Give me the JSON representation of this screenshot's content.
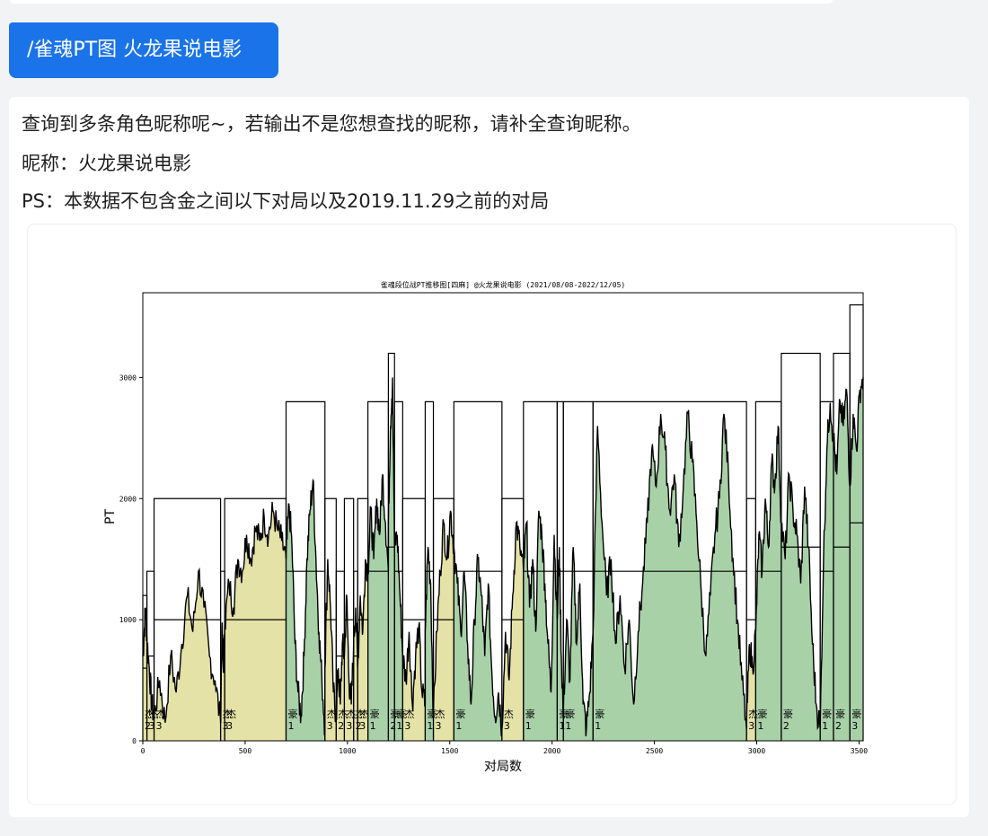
{
  "command_message": {
    "text": "/雀魂PT图 火龙果说电影"
  },
  "reply": {
    "line1": "查询到多条角色昵称呢~，若输出不是您想查找的昵称，请补全查询昵称。",
    "line2": "昵称：火龙果说电影",
    "line3": "PS：本数据不包含金之间以下对局以及2019.11.29之前的对局"
  },
  "colors": {
    "accent": "#1a73e8",
    "jie_fill": "#e4e2a6",
    "hao_fill": "#a8d1a8",
    "line": "#000000"
  },
  "chart_data": {
    "type": "area",
    "title": "雀魂段位战PT推移图[四麻]  @火龙果说电影 (2021/08/08-2022/12/05)",
    "xlabel": "对局数",
    "ylabel": "PT",
    "xlim": [
      0,
      3520
    ],
    "ylim": [
      0,
      3700
    ],
    "xticks": [
      "0",
      "500",
      "1000",
      "1500",
      "2000",
      "2500",
      "3000",
      "3500"
    ],
    "yticks": [
      "0",
      "1000",
      "2000",
      "3000"
    ],
    "rank_stages": [
      {
        "start": 0,
        "end": 20,
        "rank": "杰",
        "level": "2",
        "cap": 1200,
        "floor": 600,
        "pt": [
          700,
          900,
          1100,
          850
        ]
      },
      {
        "start": 20,
        "end": 55,
        "rank": "杰",
        "level": "3",
        "cap": 1400,
        "floor": 700,
        "pt": [
          850,
          600,
          300,
          200
        ]
      },
      {
        "start": 55,
        "end": 380,
        "rank": "杰",
        "level": "3",
        "cap": 2000,
        "floor": 1000,
        "pt": [
          200,
          500,
          150,
          700,
          400,
          800,
          1200,
          900,
          1400,
          1100,
          700,
          500,
          150
        ]
      },
      {
        "start": 380,
        "end": 400,
        "rank": "杰",
        "level": "3",
        "cap": 1400,
        "floor": 700,
        "pt": [
          150,
          900,
          600,
          950
        ]
      },
      {
        "start": 400,
        "end": 700,
        "rank": "杰",
        "level": "3",
        "cap": 2000,
        "floor": 1000,
        "pt": [
          950,
          1300,
          1100,
          1500,
          1400,
          1700,
          1500,
          1750,
          1650,
          1850,
          1700,
          1900,
          1750,
          1650,
          1500
        ]
      },
      {
        "start": 700,
        "end": 890,
        "rank": "豪",
        "level": "1",
        "cap": 2800,
        "floor": 1400,
        "pt": [
          1500,
          1950,
          1600,
          800,
          400,
          200,
          700,
          1500,
          1900,
          2150,
          1500,
          900,
          500,
          100
        ]
      },
      {
        "start": 890,
        "end": 945,
        "rank": "杰",
        "level": "3",
        "cap": 2000,
        "floor": 1000,
        "pt": [
          600,
          1500,
          1100,
          400,
          200
        ]
      },
      {
        "start": 945,
        "end": 985,
        "rank": "杰",
        "level": "2",
        "cap": 1400,
        "floor": 700,
        "pt": [
          200,
          600,
          300,
          800,
          700
        ]
      },
      {
        "start": 985,
        "end": 1030,
        "rank": "杰",
        "level": "3",
        "cap": 2000,
        "floor": 1000,
        "pt": [
          700,
          1200,
          500,
          300,
          800
        ]
      },
      {
        "start": 1030,
        "end": 1050,
        "rank": "杰",
        "level": "2",
        "cap": 1400,
        "floor": 700,
        "pt": [
          800,
          1100,
          600
        ]
      },
      {
        "start": 1050,
        "end": 1100,
        "rank": "杰",
        "level": "3",
        "cap": 2000,
        "floor": 1000,
        "pt": [
          600,
          1200,
          900,
          1500,
          1400
        ]
      },
      {
        "start": 1100,
        "end": 1200,
        "rank": "豪",
        "level": "1",
        "cap": 2800,
        "floor": 1400,
        "pt": [
          1400,
          1900,
          1500,
          2000,
          1700,
          2200,
          1800,
          1400
        ]
      },
      {
        "start": 1200,
        "end": 1230,
        "rank": "豪",
        "level": "2",
        "cap": 3200,
        "floor": 1600,
        "pt": [
          1800,
          2600,
          3000,
          1600
        ]
      },
      {
        "start": 1230,
        "end": 1270,
        "rank": "豪",
        "level": "1",
        "cap": 2800,
        "floor": 1400,
        "pt": [
          1600,
          1700,
          1200,
          700
        ]
      },
      {
        "start": 1270,
        "end": 1380,
        "rank": "杰",
        "level": "3",
        "cap": 2000,
        "floor": 1000,
        "pt": [
          700,
          500,
          900,
          300,
          700,
          950,
          400,
          300
        ]
      },
      {
        "start": 1380,
        "end": 1420,
        "rank": "豪",
        "level": "1",
        "cap": 2800,
        "floor": 1400,
        "pt": [
          900,
          1600,
          1300,
          200
        ]
      },
      {
        "start": 1420,
        "end": 1520,
        "rank": "杰",
        "level": "3",
        "cap": 2000,
        "floor": 1000,
        "pt": [
          200,
          900,
          1400,
          1800,
          1500,
          1900,
          1600
        ]
      },
      {
        "start": 1520,
        "end": 1755,
        "rank": "豪",
        "level": "1",
        "cap": 2800,
        "floor": 1400,
        "pt": [
          1600,
          1300,
          900,
          1400,
          800,
          300,
          1000,
          1500,
          1200,
          700,
          1300,
          600,
          200,
          400,
          100
        ]
      },
      {
        "start": 1755,
        "end": 1860,
        "rank": "杰",
        "level": "3",
        "cap": 2000,
        "floor": 1000,
        "pt": [
          100,
          900,
          500,
          1200,
          1800,
          1600,
          1400
        ]
      },
      {
        "start": 1860,
        "end": 2025,
        "rank": "豪",
        "level": "1",
        "cap": 2800,
        "floor": 1400,
        "pt": [
          1400,
          1800,
          1100,
          1500,
          900,
          1900,
          1700,
          1300,
          800,
          400,
          1700,
          1000
        ]
      },
      {
        "start": 2025,
        "end": 2055,
        "rank": "豪",
        "level": "1",
        "cap": 2800,
        "floor": 1400,
        "pt": [
          1000,
          1600,
          700,
          200
        ]
      },
      {
        "start": 2055,
        "end": 2200,
        "rank": "豪",
        "level": "1",
        "cap": 2800,
        "floor": 1400,
        "pt": [
          200,
          1000,
          500,
          1600,
          800,
          1300,
          300,
          100,
          400,
          900
        ]
      },
      {
        "start": 2200,
        "end": 2950,
        "rank": "豪",
        "level": "1",
        "cap": 2800,
        "floor": 1400,
        "pt": [
          900,
          2600,
          1800,
          1200,
          1500,
          800,
          1200,
          600,
          1000,
          300,
          900,
          1300,
          1800,
          2400,
          2100,
          2700,
          2400,
          1900,
          2200,
          1600,
          2100,
          2700,
          2300,
          1800,
          1200,
          700,
          1200,
          1700,
          2000,
          2700,
          2200,
          1500,
          1000,
          500,
          100
        ]
      },
      {
        "start": 2950,
        "end": 2995,
        "rank": "杰",
        "level": "3",
        "cap": 2000,
        "floor": 1000,
        "pt": [
          100,
          800,
          600,
          900
        ]
      },
      {
        "start": 2995,
        "end": 3120,
        "rank": "豪",
        "level": "1",
        "cap": 2800,
        "floor": 1400,
        "pt": [
          900,
          1700,
          1400,
          2000,
          1600,
          2300,
          2100,
          2600,
          1800
        ]
      },
      {
        "start": 3120,
        "end": 3310,
        "rank": "豪",
        "level": "2",
        "cap": 3200,
        "floor": 1600,
        "pt": [
          1800,
          1500,
          2200,
          1900,
          1700,
          1300,
          2100,
          1600,
          800,
          300,
          100
        ]
      },
      {
        "start": 3310,
        "end": 3375,
        "rank": "豪",
        "level": "1",
        "cap": 2800,
        "floor": 1400,
        "pt": [
          100,
          1500,
          2400,
          2800,
          2500
        ]
      },
      {
        "start": 3375,
        "end": 3455,
        "rank": "豪",
        "level": "2",
        "cap": 3200,
        "floor": 1600,
        "pt": [
          2500,
          2200,
          2800,
          2600,
          2900,
          2100
        ]
      },
      {
        "start": 3455,
        "end": 3520,
        "rank": "豪",
        "level": "3",
        "cap": 3600,
        "floor": 1800,
        "pt": [
          2100,
          2700,
          2400,
          2900,
          3000
        ]
      }
    ]
  }
}
